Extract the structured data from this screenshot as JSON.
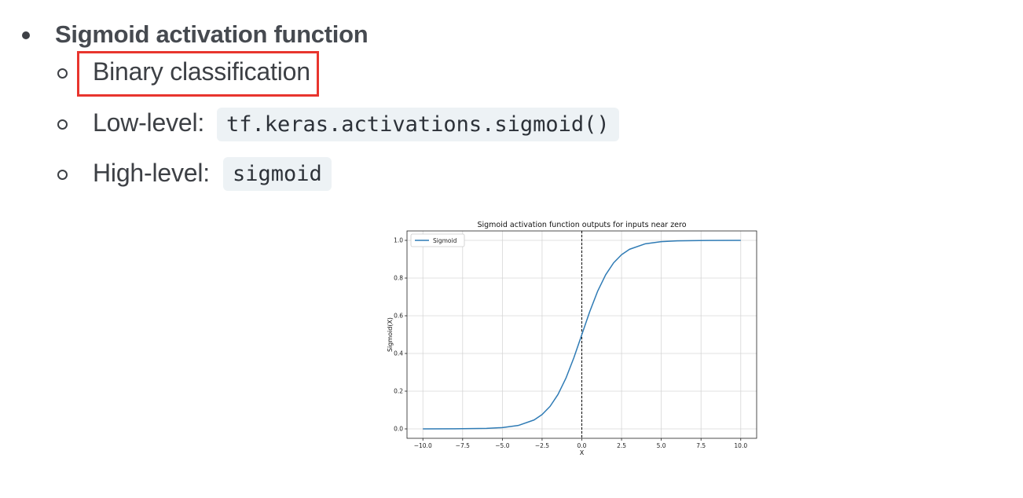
{
  "slide": {
    "heading": "Sigmoid activation function",
    "items": [
      {
        "label": "Binary classification"
      },
      {
        "label": "Low-level:",
        "code": "tf.keras.activations.sigmoid()"
      },
      {
        "label": "High-level:",
        "code": "sigmoid"
      }
    ],
    "highlight_color": "#e8352e"
  },
  "chart_data": {
    "type": "line",
    "title": "Sigmoid activation function outputs for inputs near zero",
    "xlabel": "X",
    "ylabel": "Sigmoid(X)",
    "xlim": [
      -11,
      11
    ],
    "ylim": [
      -0.05,
      1.05
    ],
    "xticks": [
      -10.0,
      -7.5,
      -5.0,
      -2.5,
      0.0,
      2.5,
      5.0,
      7.5,
      10.0
    ],
    "xtick_labels": [
      "−10.0",
      "−7.5",
      "−5.0",
      "−2.5",
      "0.0",
      "2.5",
      "5.0",
      "7.5",
      "10.0"
    ],
    "yticks": [
      0.0,
      0.2,
      0.4,
      0.6,
      0.8,
      1.0
    ],
    "ytick_labels": [
      "0.0",
      "0.2",
      "0.4",
      "0.6",
      "0.8",
      "1.0"
    ],
    "grid": true,
    "legend": "top-left",
    "vertical_line": {
      "x": 0,
      "style": "dashed",
      "color": "#000000"
    },
    "series": [
      {
        "name": "Sigmoid",
        "color": "#2f7bb5",
        "function": "1/(1+exp(-x))",
        "x": [
          -10,
          -8,
          -6,
          -5,
          -4,
          -3,
          -2.5,
          -2,
          -1.5,
          -1,
          -0.5,
          0,
          0.5,
          1,
          1.5,
          2,
          2.5,
          3,
          4,
          5,
          6,
          8,
          10
        ],
        "y": [
          4.54e-05,
          0.000335,
          0.00247,
          0.00669,
          0.018,
          0.0474,
          0.0759,
          0.1192,
          0.1824,
          0.2689,
          0.3775,
          0.5,
          0.6225,
          0.7311,
          0.8176,
          0.8808,
          0.9241,
          0.9526,
          0.982,
          0.9933,
          0.9975,
          0.99966,
          0.99995
        ]
      }
    ]
  }
}
